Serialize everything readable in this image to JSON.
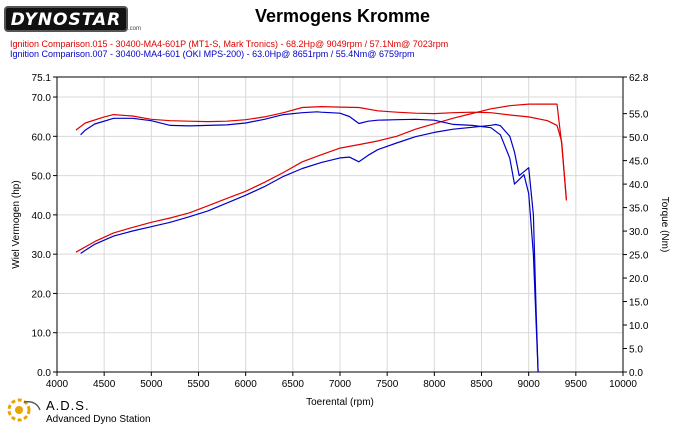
{
  "header": {
    "logo_text": "DYNOSTAR",
    "logo_subtext": ".com",
    "title": "Vermogens Kromme"
  },
  "legend": {
    "red": "Ignition Comparison.015 - 30400-MA4-601P (MT1-S, Mark Tronics)  - 68.2Hp@ 9049rpm / 57.1Nm@ 7023rpm",
    "blue": "Ignition Comparison.007 - 30400-MA4-601 (OKI MPS-200)  - 63.0Hp@ 8651rpm / 55.4Nm@ 6759rpm"
  },
  "footer": {
    "brand": "A.D.S.",
    "subtitle": "Advanced Dyno Station"
  },
  "colors": {
    "red": "#e00000",
    "blue": "#0000c8",
    "grid": "#d9d9d9"
  },
  "chart_data": {
    "type": "line",
    "title": "Vermogens Kromme",
    "xlabel": "Toerental (rpm)",
    "ylabel": "Wiel Vermogen (hp)",
    "y2label": "Torque (Nm)",
    "xlim": [
      4000,
      10000
    ],
    "ylim": [
      0,
      75.1
    ],
    "y2lim": [
      0,
      62.8
    ],
    "xticks": [
      4000,
      4500,
      5000,
      5500,
      6000,
      6500,
      7000,
      7500,
      8000,
      8500,
      9000,
      9500,
      10000
    ],
    "yticks": [
      0,
      10,
      20,
      30,
      40,
      50,
      60,
      70,
      75.1
    ],
    "ytick_labels": [
      "0.0",
      "10.0",
      "20.0",
      "30.0",
      "40.0",
      "50.0",
      "60.0",
      "70.0",
      "75.1"
    ],
    "y2ticks": [
      0,
      5,
      10,
      15,
      20,
      25,
      30,
      35,
      40,
      45,
      50,
      55,
      62.8
    ],
    "y2tick_labels": [
      "0.0",
      "5.0",
      "10.0",
      "15.0",
      "20.0",
      "25.0",
      "30.0",
      "35.0",
      "40.0",
      "45.0",
      "50.0",
      "55.0",
      "62.8"
    ],
    "grid": true,
    "series": [
      {
        "name": "Ignition Comparison.015 - 30400-MA4-601P (MT1-S, Mark Tronics)",
        "measure": "power",
        "axis": "left",
        "color": "#e00000",
        "x": [
          4200,
          4400,
          4600,
          4800,
          5000,
          5200,
          5400,
          5600,
          5800,
          6000,
          6200,
          6400,
          6600,
          6800,
          7000,
          7200,
          7400,
          7600,
          7800,
          8000,
          8200,
          8400,
          8600,
          8800,
          9000,
          9100,
          9200,
          9300,
          9350,
          9400
        ],
        "values": [
          30.5,
          33.2,
          35.4,
          36.8,
          38.1,
          39.2,
          40.5,
          42.3,
          44.2,
          46.0,
          48.3,
          50.8,
          53.5,
          55.3,
          57.0,
          57.9,
          58.8,
          60.0,
          61.8,
          63.2,
          64.6,
          65.8,
          67.0,
          67.8,
          68.2,
          68.2,
          68.2,
          68.2,
          58.0,
          44.0
        ]
      },
      {
        "name": "Ignition Comparison.015 - 30400-MA4-601P (MT1-S, Mark Tronics)",
        "measure": "torque",
        "axis": "right",
        "color": "#e00000",
        "x": [
          4200,
          4300,
          4500,
          4600,
          4800,
          5000,
          5200,
          5400,
          5600,
          5800,
          6000,
          6200,
          6400,
          6600,
          6800,
          7000,
          7200,
          7400,
          7600,
          7800,
          8000,
          8200,
          8400,
          8600,
          8800,
          9000,
          9200,
          9300,
          9350,
          9400
        ],
        "values": [
          51.5,
          53.0,
          54.3,
          54.8,
          54.5,
          53.8,
          53.5,
          53.4,
          53.3,
          53.4,
          53.7,
          54.3,
          55.2,
          56.3,
          56.5,
          56.4,
          56.3,
          55.6,
          55.3,
          55.1,
          55.0,
          55.2,
          55.3,
          55.2,
          54.7,
          54.3,
          53.5,
          52.5,
          49.0,
          36.5
        ]
      },
      {
        "name": "Ignition Comparison.007 - 30400-MA4-601 (OKI MPS-200)",
        "measure": "power",
        "axis": "left",
        "color": "#0000c8",
        "x": [
          4250,
          4400,
          4600,
          4800,
          5000,
          5200,
          5400,
          5600,
          5800,
          6000,
          6200,
          6400,
          6600,
          6800,
          7000,
          7100,
          7200,
          7300,
          7400,
          7600,
          7800,
          8000,
          8200,
          8400,
          8600,
          8651,
          8700,
          8800,
          8850,
          8900,
          8950,
          9000,
          9050,
          9080,
          9100
        ],
        "values": [
          30.2,
          32.5,
          34.6,
          35.9,
          37.0,
          38.1,
          39.5,
          41.0,
          43.0,
          45.0,
          47.2,
          49.8,
          51.8,
          53.3,
          54.5,
          54.7,
          53.5,
          55.2,
          56.6,
          58.3,
          59.9,
          61.0,
          61.8,
          62.3,
          62.8,
          63.0,
          62.7,
          60.0,
          56.0,
          50.0,
          51.0,
          52.0,
          40.0,
          15.0,
          0.0
        ]
      },
      {
        "name": "Ignition Comparison.007 - 30400-MA4-601 (OKI MPS-200)",
        "measure": "torque",
        "axis": "right",
        "color": "#0000c8",
        "x": [
          4250,
          4300,
          4400,
          4600,
          4800,
          5000,
          5200,
          5400,
          5600,
          5800,
          6000,
          6200,
          6400,
          6600,
          6759,
          6800,
          7000,
          7100,
          7200,
          7300,
          7400,
          7600,
          7800,
          8000,
          8200,
          8400,
          8600,
          8700,
          8800,
          8850,
          8900,
          8950,
          9000,
          9050,
          9080,
          9100
        ],
        "values": [
          50.5,
          51.5,
          52.8,
          54.0,
          54.0,
          53.5,
          52.5,
          52.4,
          52.5,
          52.6,
          53.0,
          53.8,
          54.8,
          55.2,
          55.4,
          55.3,
          55.1,
          54.4,
          52.9,
          53.4,
          53.6,
          53.7,
          53.8,
          53.6,
          52.7,
          52.5,
          52.0,
          50.5,
          45.5,
          40.0,
          41.0,
          42.0,
          38.0,
          25.0,
          10.0,
          0.0
        ]
      }
    ]
  }
}
